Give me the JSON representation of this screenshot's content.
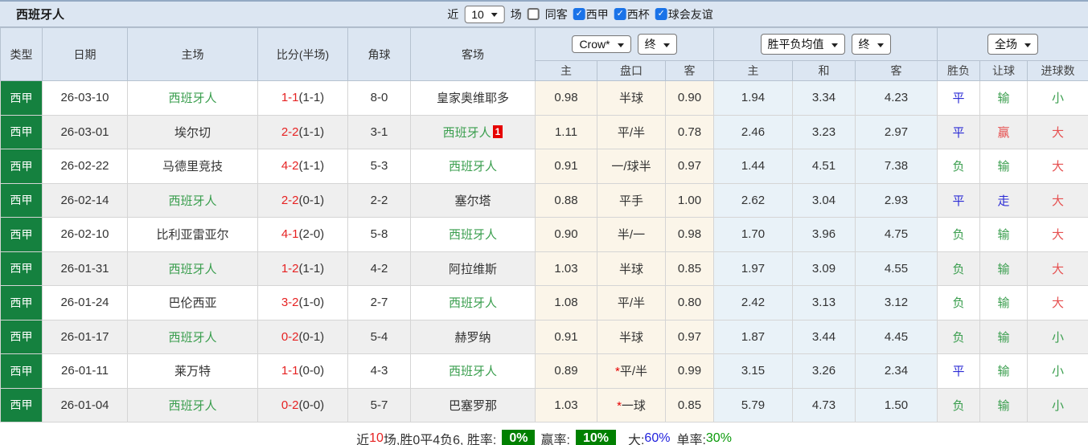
{
  "title": "西班牙人",
  "toolbar": {
    "recent_label": "近",
    "recent_value": "10",
    "unit_label": "场",
    "same_away_label": "同客",
    "filters": [
      "西甲",
      "西杯",
      "球会友谊"
    ]
  },
  "header": {
    "columns": [
      "类型",
      "日期",
      "主场",
      "比分(半场)",
      "角球",
      "客场"
    ],
    "asian_select": "Crow*",
    "asian_time_select": "终",
    "euro_select": "胜平负均值",
    "euro_time_select": "终",
    "scope_select": "全场",
    "sub_columns": [
      "主",
      "盘口",
      "客",
      "主",
      "和",
      "客",
      "胜负",
      "让球",
      "进球数"
    ]
  },
  "table": {
    "rows": [
      {
        "league": "西甲",
        "date": "26-03-10",
        "home": {
          "name": "西班牙人",
          "style": "team"
        },
        "score": "1-1",
        "half": "(1-1)",
        "corners": "8-0",
        "away": {
          "name": "皇家奥维耶多",
          "style": "plain",
          "card": ""
        },
        "asian": {
          "home": "0.98",
          "star": "",
          "handicap": "半球",
          "away": "0.90"
        },
        "euro": {
          "home": "1.94",
          "draw": "3.34",
          "away": "4.23"
        },
        "outcome": {
          "text": "平",
          "color": "blue"
        },
        "handicap_result": {
          "text": "输",
          "color": "green"
        },
        "goals_result": {
          "text": "小",
          "color": "green"
        }
      },
      {
        "league": "西甲",
        "date": "26-03-01",
        "home": {
          "name": "埃尔切",
          "style": "plain"
        },
        "score": "2-2",
        "half": "(1-1)",
        "corners": "3-1",
        "away": {
          "name": "西班牙人",
          "style": "team",
          "card": "1"
        },
        "asian": {
          "home": "1.11",
          "star": "",
          "handicap": "平/半",
          "away": "0.78"
        },
        "euro": {
          "home": "2.46",
          "draw": "3.23",
          "away": "2.97"
        },
        "outcome": {
          "text": "平",
          "color": "blue"
        },
        "handicap_result": {
          "text": "赢",
          "color": "red"
        },
        "goals_result": {
          "text": "大",
          "color": "red"
        }
      },
      {
        "league": "西甲",
        "date": "26-02-22",
        "home": {
          "name": "马德里竞技",
          "style": "plain"
        },
        "score": "4-2",
        "half": "(1-1)",
        "corners": "5-3",
        "away": {
          "name": "西班牙人",
          "style": "team",
          "card": ""
        },
        "asian": {
          "home": "0.91",
          "star": "",
          "handicap": "一/球半",
          "away": "0.97"
        },
        "euro": {
          "home": "1.44",
          "draw": "4.51",
          "away": "7.38"
        },
        "outcome": {
          "text": "负",
          "color": "green"
        },
        "handicap_result": {
          "text": "输",
          "color": "green"
        },
        "goals_result": {
          "text": "大",
          "color": "red"
        }
      },
      {
        "league": "西甲",
        "date": "26-02-14",
        "home": {
          "name": "西班牙人",
          "style": "team"
        },
        "score": "2-2",
        "half": "(0-1)",
        "corners": "2-2",
        "away": {
          "name": "塞尔塔",
          "style": "plain",
          "card": ""
        },
        "asian": {
          "home": "0.88",
          "star": "",
          "handicap": "平手",
          "away": "1.00"
        },
        "euro": {
          "home": "2.62",
          "draw": "3.04",
          "away": "2.93"
        },
        "outcome": {
          "text": "平",
          "color": "blue"
        },
        "handicap_result": {
          "text": "走",
          "color": "blue"
        },
        "goals_result": {
          "text": "大",
          "color": "red"
        }
      },
      {
        "league": "西甲",
        "date": "26-02-10",
        "home": {
          "name": "比利亚雷亚尔",
          "style": "plain"
        },
        "score": "4-1",
        "half": "(2-0)",
        "corners": "5-8",
        "away": {
          "name": "西班牙人",
          "style": "team",
          "card": ""
        },
        "asian": {
          "home": "0.90",
          "star": "",
          "handicap": "半/一",
          "away": "0.98"
        },
        "euro": {
          "home": "1.70",
          "draw": "3.96",
          "away": "4.75"
        },
        "outcome": {
          "text": "负",
          "color": "green"
        },
        "handicap_result": {
          "text": "输",
          "color": "green"
        },
        "goals_result": {
          "text": "大",
          "color": "red"
        }
      },
      {
        "league": "西甲",
        "date": "26-01-31",
        "home": {
          "name": "西班牙人",
          "style": "team"
        },
        "score": "1-2",
        "half": "(1-1)",
        "corners": "4-2",
        "away": {
          "name": "阿拉维斯",
          "style": "plain",
          "card": ""
        },
        "asian": {
          "home": "1.03",
          "star": "",
          "handicap": "半球",
          "away": "0.85"
        },
        "euro": {
          "home": "1.97",
          "draw": "3.09",
          "away": "4.55"
        },
        "outcome": {
          "text": "负",
          "color": "green"
        },
        "handicap_result": {
          "text": "输",
          "color": "green"
        },
        "goals_result": {
          "text": "大",
          "color": "red"
        }
      },
      {
        "league": "西甲",
        "date": "26-01-24",
        "home": {
          "name": "巴伦西亚",
          "style": "plain"
        },
        "score": "3-2",
        "half": "(1-0)",
        "corners": "2-7",
        "away": {
          "name": "西班牙人",
          "style": "team",
          "card": ""
        },
        "asian": {
          "home": "1.08",
          "star": "",
          "handicap": "平/半",
          "away": "0.80"
        },
        "euro": {
          "home": "2.42",
          "draw": "3.13",
          "away": "3.12"
        },
        "outcome": {
          "text": "负",
          "color": "green"
        },
        "handicap_result": {
          "text": "输",
          "color": "green"
        },
        "goals_result": {
          "text": "大",
          "color": "red"
        }
      },
      {
        "league": "西甲",
        "date": "26-01-17",
        "home": {
          "name": "西班牙人",
          "style": "team"
        },
        "score": "0-2",
        "half": "(0-1)",
        "corners": "5-4",
        "away": {
          "name": "赫罗纳",
          "style": "plain",
          "card": ""
        },
        "asian": {
          "home": "0.91",
          "star": "",
          "handicap": "半球",
          "away": "0.97"
        },
        "euro": {
          "home": "1.87",
          "draw": "3.44",
          "away": "4.45"
        },
        "outcome": {
          "text": "负",
          "color": "green"
        },
        "handicap_result": {
          "text": "输",
          "color": "green"
        },
        "goals_result": {
          "text": "小",
          "color": "green"
        }
      },
      {
        "league": "西甲",
        "date": "26-01-11",
        "home": {
          "name": "莱万特",
          "style": "plain"
        },
        "score": "1-1",
        "half": "(0-0)",
        "corners": "4-3",
        "away": {
          "name": "西班牙人",
          "style": "team",
          "card": ""
        },
        "asian": {
          "home": "0.89",
          "star": "*",
          "handicap": "平/半",
          "away": "0.99"
        },
        "euro": {
          "home": "3.15",
          "draw": "3.26",
          "away": "2.34"
        },
        "outcome": {
          "text": "平",
          "color": "blue"
        },
        "handicap_result": {
          "text": "输",
          "color": "green"
        },
        "goals_result": {
          "text": "小",
          "color": "green"
        }
      },
      {
        "league": "西甲",
        "date": "26-01-04",
        "home": {
          "name": "西班牙人",
          "style": "team"
        },
        "score": "0-2",
        "half": "(0-0)",
        "corners": "5-7",
        "away": {
          "name": "巴塞罗那",
          "style": "plain",
          "card": ""
        },
        "asian": {
          "home": "1.03",
          "star": "*",
          "handicap": "一球",
          "away": "0.85"
        },
        "euro": {
          "home": "5.79",
          "draw": "4.73",
          "away": "1.50"
        },
        "outcome": {
          "text": "负",
          "color": "green"
        },
        "handicap_result": {
          "text": "输",
          "color": "green"
        },
        "goals_result": {
          "text": "小",
          "color": "green"
        }
      }
    ]
  },
  "footer": {
    "recent_label": "近",
    "recent_count": "10",
    "summary": "场,胜0平4负6, 胜率:",
    "win_rate": "0%",
    "profit_label": "赢率:",
    "profit_rate": "10%",
    "big_label": "大:",
    "big_rate": "60%",
    "single_label": "单率:",
    "single_rate": "30%"
  },
  "colors": {
    "header_bg": "#dce6f2",
    "league_badge_green": "#15813f",
    "team_name_green": "#3a9e4e",
    "score_red": "#e62222",
    "result_blue": "#2b2bd5",
    "result_red": "#e65050",
    "asian_col_bg": "#fbf5e9",
    "euro_col_bg": "#e9f2f8",
    "rate_badge_green": "#008000",
    "checkbox_blue": "#1a73e8"
  }
}
